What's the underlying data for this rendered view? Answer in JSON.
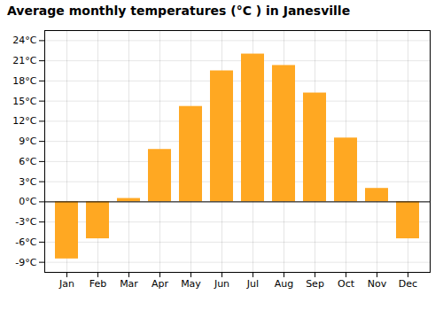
{
  "chart_data": {
    "type": "bar",
    "title": "Average monthly temperatures (°C ) in Janesville",
    "categories": [
      "Jan",
      "Feb",
      "Mar",
      "Apr",
      "May",
      "Jun",
      "Jul",
      "Aug",
      "Sep",
      "Oct",
      "Nov",
      "Dec"
    ],
    "values": [
      -8.5,
      -5.5,
      0.5,
      7.8,
      14.2,
      19.5,
      22.0,
      20.3,
      16.2,
      9.5,
      2.0,
      -5.5
    ],
    "color": "#FFA822",
    "ylim": [
      -10.5,
      25.5
    ],
    "yticks": [
      {
        "value": -9,
        "label": "-9°C"
      },
      {
        "value": -6,
        "label": "-6°C"
      },
      {
        "value": -3,
        "label": "-3°C"
      },
      {
        "value": 0,
        "label": "0°C"
      },
      {
        "value": 3,
        "label": "3°C"
      },
      {
        "value": 6,
        "label": "6°C"
      },
      {
        "value": 9,
        "label": "9°C"
      },
      {
        "value": 12,
        "label": "12°C"
      },
      {
        "value": 15,
        "label": "15°C"
      },
      {
        "value": 18,
        "label": "18°C"
      },
      {
        "value": 21,
        "label": "21°C"
      },
      {
        "value": 24,
        "label": "24°C"
      }
    ],
    "grid": true
  }
}
